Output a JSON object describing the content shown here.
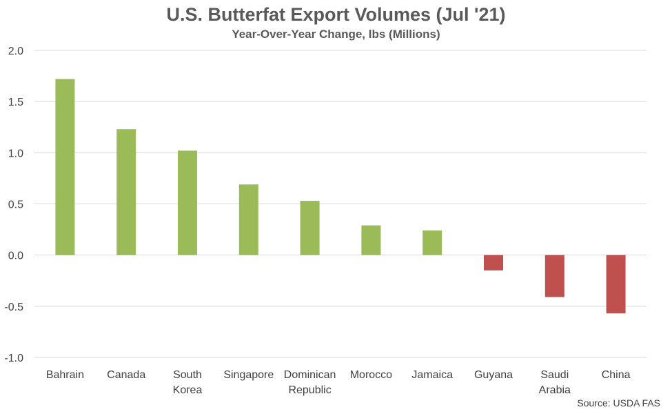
{
  "chart_data": {
    "type": "bar",
    "title": "U.S. Butterfat Export Volumes (Jul '21)",
    "subtitle": "Year-Over-Year Change, lbs (Millions)",
    "source": "Source: USDA FAS",
    "categories": [
      [
        "Bahrain"
      ],
      [
        "Canada"
      ],
      [
        "South",
        "Korea"
      ],
      [
        "Singapore"
      ],
      [
        "Dominican",
        "Republic"
      ],
      [
        "Morocco"
      ],
      [
        "Jamaica"
      ],
      [
        "Guyana"
      ],
      [
        "Saudi",
        "Arabia"
      ],
      [
        "China"
      ]
    ],
    "values": [
      1.72,
      1.23,
      1.02,
      0.69,
      0.53,
      0.29,
      0.24,
      -0.15,
      -0.41,
      -0.57
    ],
    "ylim": [
      -1.0,
      2.0
    ],
    "yticks": [
      "2.0",
      "1.5",
      "1.0",
      "0.5",
      "0.0",
      "-0.5",
      "-1.0"
    ],
    "ytick_values": [
      2.0,
      1.5,
      1.0,
      0.5,
      0.0,
      -0.5,
      -1.0
    ],
    "grid": true,
    "colors": {
      "positive": "#9BBB59",
      "negative": "#C0504D",
      "grid": "#D9D9D9"
    }
  }
}
